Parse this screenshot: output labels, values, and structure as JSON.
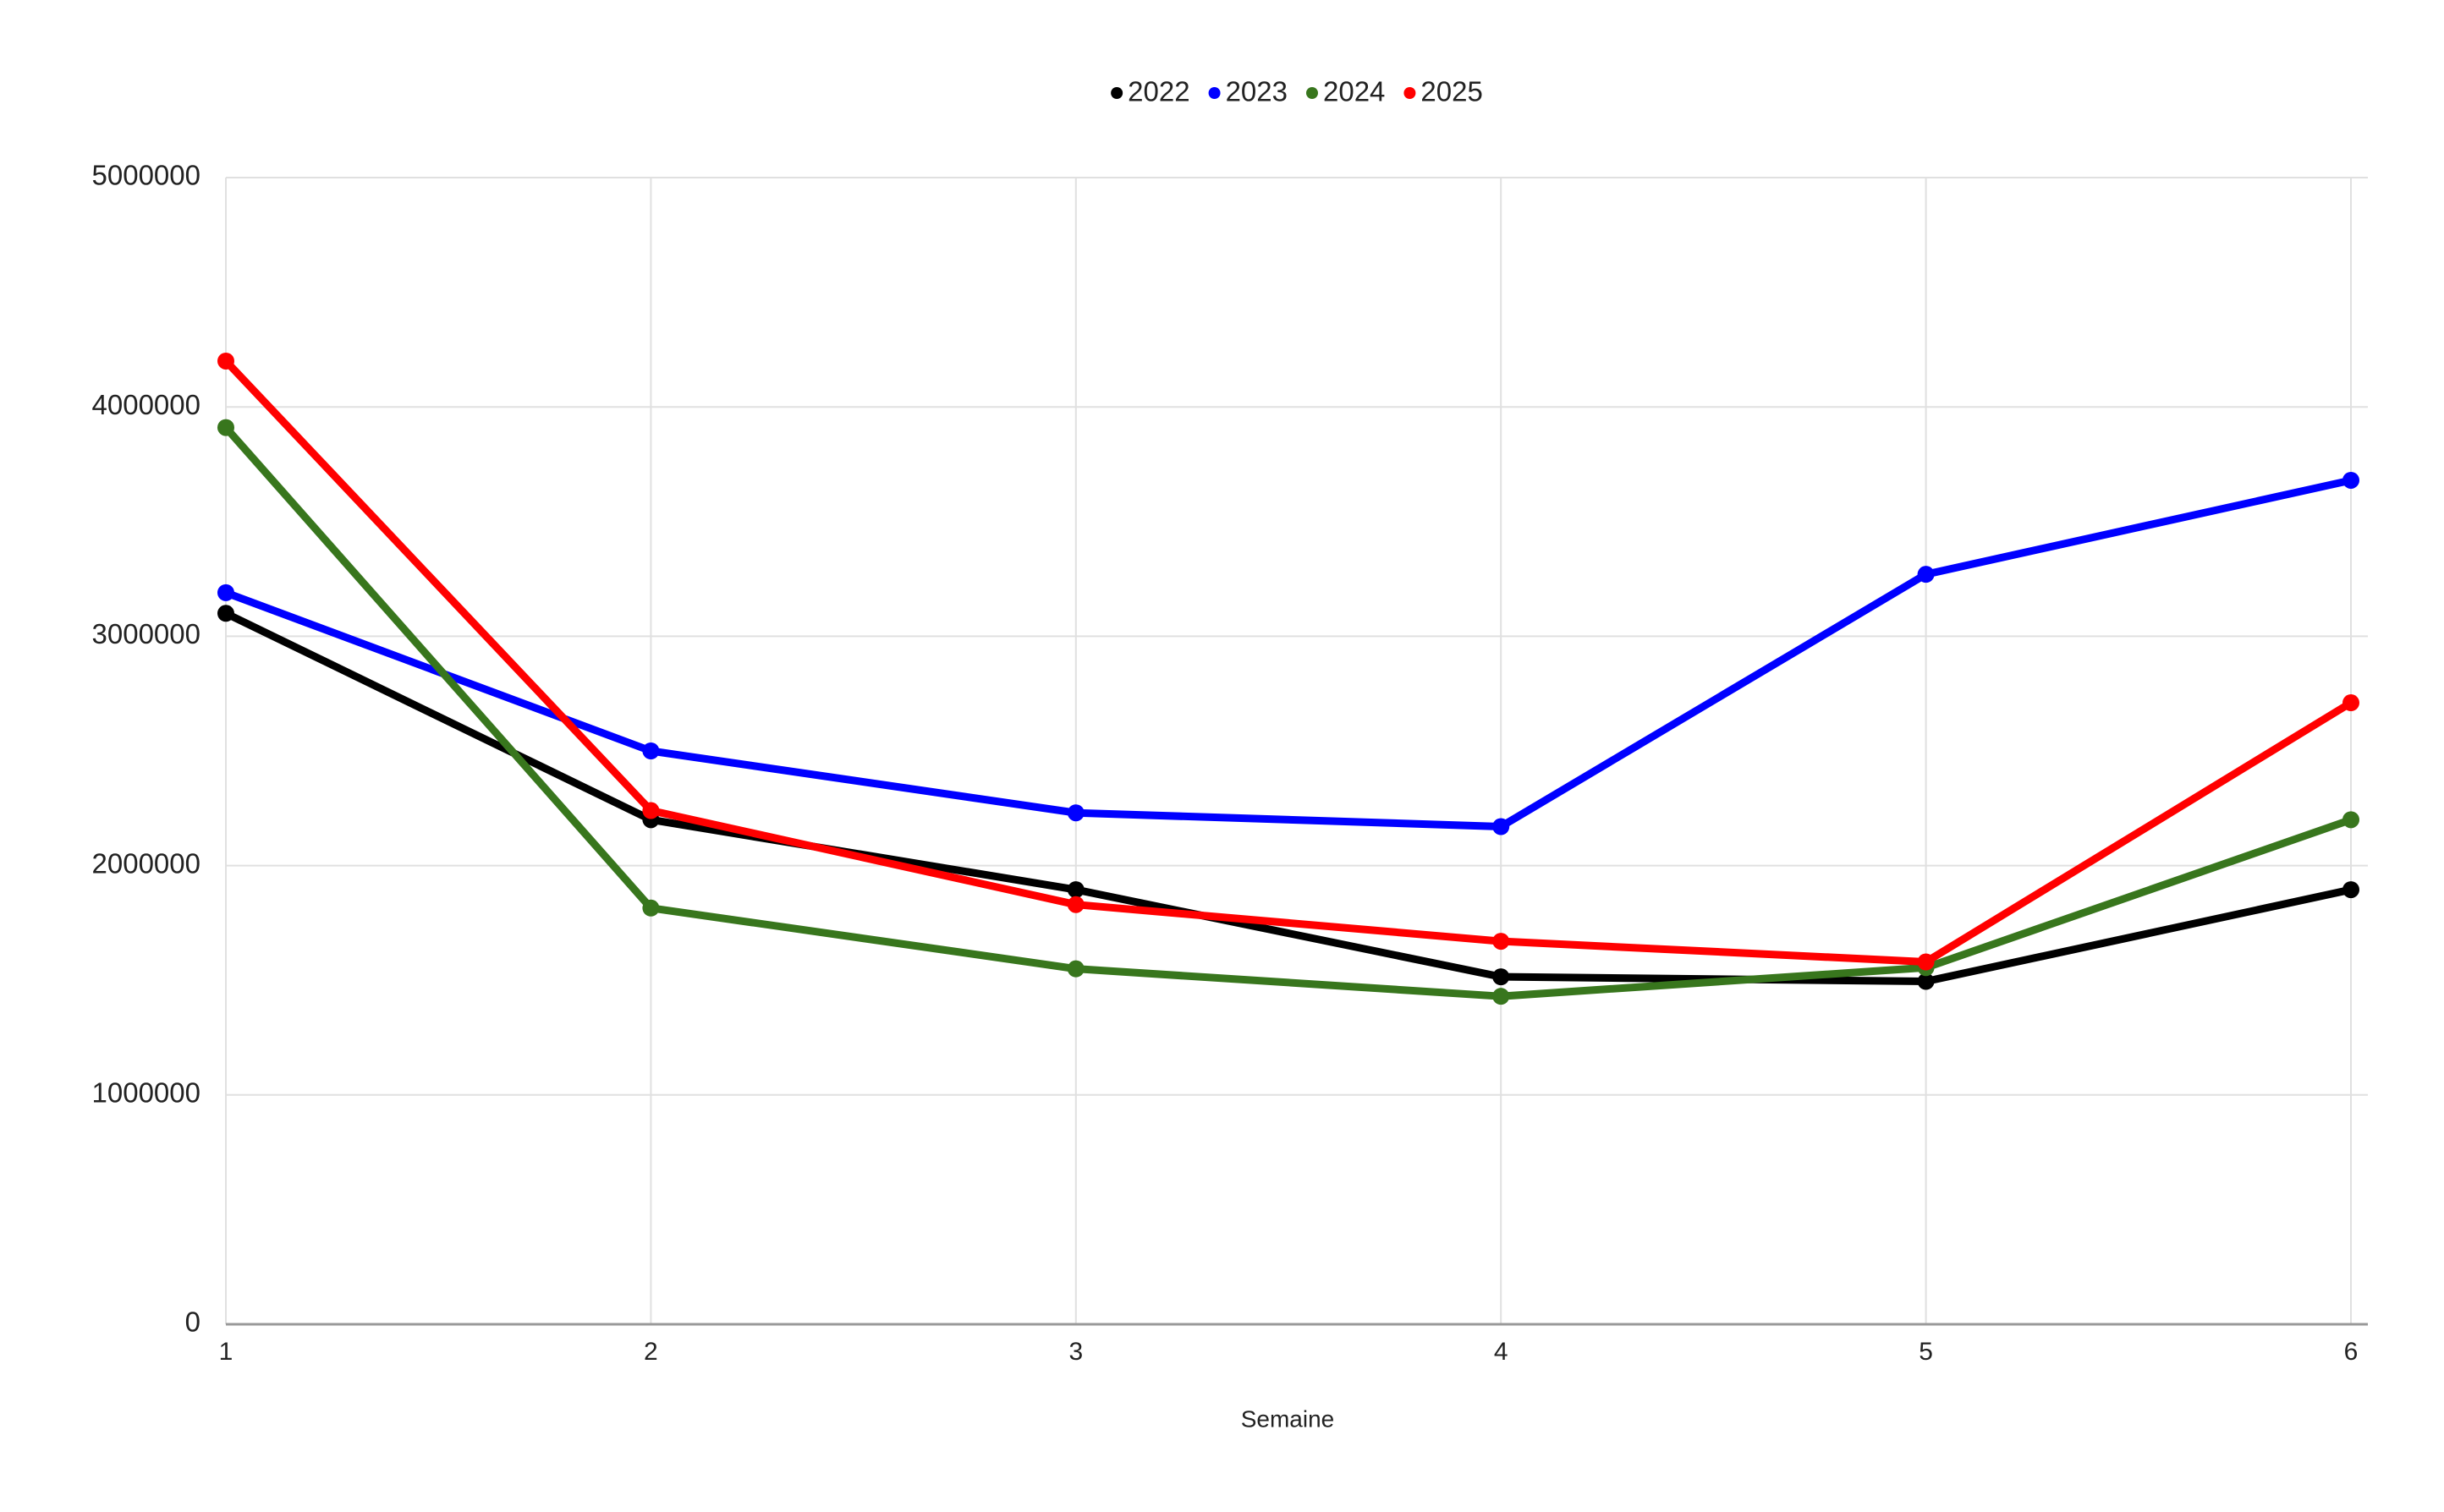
{
  "chart_data": {
    "type": "line",
    "x_label": "Semaine",
    "x": [
      1,
      2,
      3,
      4,
      5,
      6
    ],
    "series": [
      {
        "name": "2022",
        "color": "#000000",
        "values": [
          3100000,
          2200000,
          1895000,
          1515000,
          1495000,
          1895000
        ]
      },
      {
        "name": "2023",
        "color": "#0000ff",
        "values": [
          3190000,
          2500000,
          2230000,
          2170000,
          3270000,
          3680000
        ]
      },
      {
        "name": "2024",
        "color": "#38761d",
        "values": [
          3910000,
          1815000,
          1550000,
          1430000,
          1555000,
          2200000
        ]
      },
      {
        "name": "2025",
        "color": "#ff0000",
        "values": [
          4200000,
          2240000,
          1830000,
          1670000,
          1580000,
          2710000
        ]
      }
    ],
    "xlim": [
      1,
      6
    ],
    "xticks": [
      1,
      2,
      3,
      4,
      5,
      6
    ],
    "ylim": [
      0,
      5000000
    ],
    "yticks": [
      0,
      1000000,
      2000000,
      3000000,
      4000000,
      5000000
    ],
    "grid": true,
    "legend": "top"
  }
}
